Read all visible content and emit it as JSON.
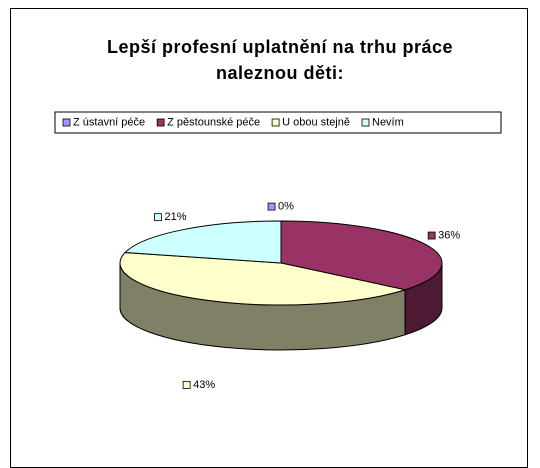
{
  "chart_data": {
    "type": "pie",
    "three_d": true,
    "title": "Lepší profesní uplatnění na trhu práce naleznou děti:",
    "categories": [
      "Z ústavní péče",
      "Z pěstounské péče",
      "U obou stejně",
      "Nevím"
    ],
    "values": [
      0,
      36,
      43,
      21
    ],
    "value_labels": [
      "0%",
      "36%",
      "43%",
      "21%"
    ],
    "colors": [
      "#9999ff",
      "#993366",
      "#ffffcc",
      "#ccffff"
    ],
    "legend": "top"
  }
}
